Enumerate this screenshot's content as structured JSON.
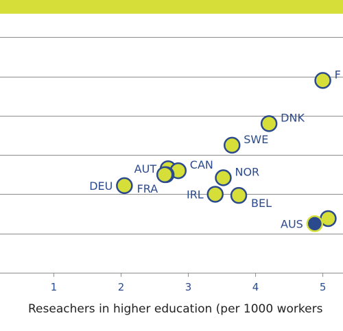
{
  "colors": {
    "banner": "#d6df3a",
    "point_fill": "#d6df3a",
    "point_stroke": "#2b4a8e",
    "highlight_fill": "#2b4a8e",
    "highlight_stroke": "#d6df3a",
    "gridline": "#8c8c8c",
    "label": "#2b4a8e"
  },
  "chart_data": {
    "type": "scatter",
    "xlabel": "Reseachers in higher education (per 1000 workers",
    "x_ticks": [
      "1",
      "2",
      "3",
      "4",
      "5"
    ],
    "xlim": [
      0.2,
      5.3
    ],
    "ylim": [
      0,
      6.6
    ],
    "grid": true,
    "gridlines_y": [
      1,
      2,
      3,
      4,
      5,
      6
    ],
    "points": [
      {
        "label": "F",
        "x": 5.0,
        "y": 4.9,
        "label_side": "right",
        "highlight": false
      },
      {
        "label": "DNK",
        "x": 4.2,
        "y": 3.8,
        "label_side": "right",
        "highlight": false
      },
      {
        "label": "SWE",
        "x": 3.65,
        "y": 3.25,
        "label_side": "right",
        "highlight": false
      },
      {
        "label": "AUT",
        "x": 2.7,
        "y": 2.65,
        "label_side": "left",
        "highlight": false
      },
      {
        "label": "CAN",
        "x": 2.85,
        "y": 2.6,
        "label_side": "right",
        "highlight": false
      },
      {
        "label": "",
        "x": 2.67,
        "y": 2.5,
        "label_side": "none",
        "highlight": false
      },
      {
        "label": "FRA",
        "x": 2.65,
        "y": 2.5,
        "label_side": "below",
        "highlight": false
      },
      {
        "label": "DEU",
        "x": 2.05,
        "y": 2.22,
        "label_side": "left",
        "highlight": false
      },
      {
        "label": "NOR",
        "x": 3.52,
        "y": 2.42,
        "label_side": "right",
        "highlight": false
      },
      {
        "label": "IRL",
        "x": 3.4,
        "y": 2.0,
        "label_side": "left",
        "highlight": false
      },
      {
        "label": "BEL",
        "x": 3.75,
        "y": 1.97,
        "label_side": "below-right",
        "highlight": false
      },
      {
        "label": "",
        "x": 5.08,
        "y": 1.38,
        "label_side": "right",
        "highlight": false
      },
      {
        "label": "AUS",
        "x": 4.88,
        "y": 1.25,
        "label_side": "left",
        "highlight": true
      }
    ]
  }
}
